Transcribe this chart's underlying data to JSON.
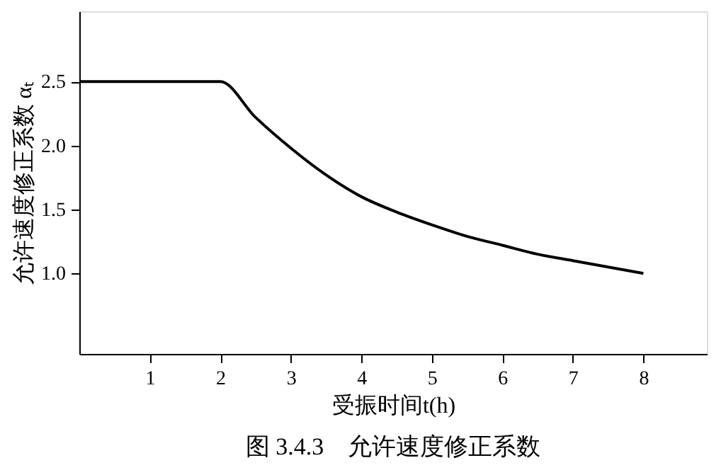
{
  "chart_data": {
    "type": "line",
    "title": "图 3.4.3　允许速度修正系数",
    "xlabel": "受振时间t(h)",
    "ylabel": "允许速度修正系数 αₜ",
    "x": [
      0,
      2,
      2.5,
      3,
      3.5,
      4,
      4.5,
      5,
      5.5,
      6,
      6.5,
      7,
      7.5,
      8
    ],
    "series": [
      {
        "color": "#000000",
        "values": [
          2.5,
          2.5,
          2.22,
          1.98,
          1.77,
          1.6,
          1.48,
          1.38,
          1.29,
          1.22,
          1.15,
          1.1,
          1.05,
          1.0
        ]
      }
    ],
    "xlim": [
      0,
      8.9
    ],
    "xticks": [
      1,
      2,
      3,
      4,
      5,
      6,
      7,
      8
    ],
    "ylim": [
      0.37,
      3.05
    ],
    "yticks": [
      {
        "value": 1,
        "label": "1.0"
      },
      1.5,
      {
        "value": 2,
        "label": "2.0"
      },
      2.5
    ],
    "grid": false,
    "marker": "none",
    "line_style": "solid"
  }
}
